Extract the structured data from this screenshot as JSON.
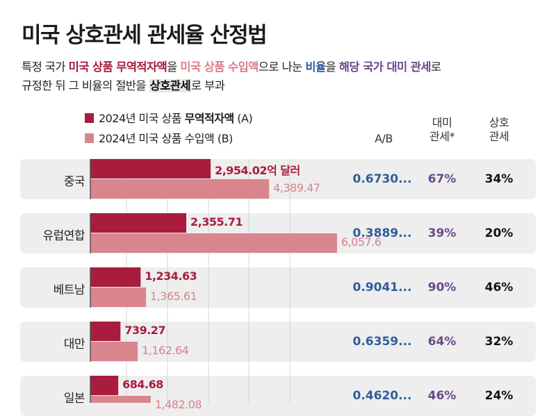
{
  "title": "미국 상호관세 관세율 산정법",
  "description": {
    "line1": [
      {
        "text": "특정 국가 ",
        "cls": ""
      },
      {
        "text": "미국 상품 무역적자액",
        "cls": "c-export s"
      },
      {
        "text": "을 ",
        "cls": ""
      },
      {
        "text": "미국 상품 수입액",
        "cls": "c-import s"
      },
      {
        "text": "으로 나눈 ",
        "cls": ""
      },
      {
        "text": "비율",
        "cls": "c-ratio s"
      },
      {
        "text": "을 ",
        "cls": ""
      },
      {
        "text": "해당 국가 대미 관세",
        "cls": "c-tariff s"
      },
      {
        "text": "로",
        "cls": ""
      }
    ],
    "line2": [
      {
        "text": "규정한 뒤 그 비율의 절반을 ",
        "cls": ""
      },
      {
        "text": "상호관세",
        "cls": "s hl"
      },
      {
        "text": "로 부과",
        "cls": ""
      }
    ]
  },
  "legend": {
    "prefix": "2024년 미국 상품 ",
    "export_strong": "무역적자액",
    "export_suffix": " (A)",
    "import_label": "2024년 미국 상품 수입액 (B)"
  },
  "columns": {
    "ratio": "A/B",
    "tariff_line1": "대미",
    "tariff_line2": "관세*",
    "reciprocal_line1": "상호",
    "reciprocal_line2": "관세"
  },
  "unit_label": "억 달러",
  "colors": {
    "export": "#a81c3e",
    "import": "#d9858d",
    "ratio": "#2f5d99",
    "tariff": "#6a4a8a"
  },
  "chart_data": {
    "type": "bar",
    "orientation": "horizontal",
    "unit": "억 달러",
    "categories": [
      "중국",
      "유럽연합",
      "베트남",
      "대만",
      "일본"
    ],
    "series": [
      {
        "name": "2024년 미국 상품 무역적자액 (A)",
        "values": [
          2954.02,
          2355.71,
          1234.63,
          739.27,
          684.68
        ],
        "labels": [
          "2,954.02",
          "2,355.71",
          "1,234.63",
          "739.27",
          "684.68"
        ]
      },
      {
        "name": "2024년 미국 상품 수입액 (B)",
        "values": [
          4389.47,
          6057.6,
          1365.61,
          1162.64,
          1482
        ],
        "labels": [
          "4,389.47",
          "6,057.6",
          "1,365.61",
          "1,162.64",
          "1,482.08"
        ]
      }
    ],
    "table": {
      "ratio": [
        "0.6730...",
        "0.3889...",
        "0.9041...",
        "0.6359...",
        "0.4620..."
      ],
      "tariff": [
        "67%",
        "39%",
        "90%",
        "64%",
        "46%"
      ],
      "reciprocal": [
        "34%",
        "20%",
        "46%",
        "32%",
        "24%"
      ]
    },
    "grid": true
  }
}
